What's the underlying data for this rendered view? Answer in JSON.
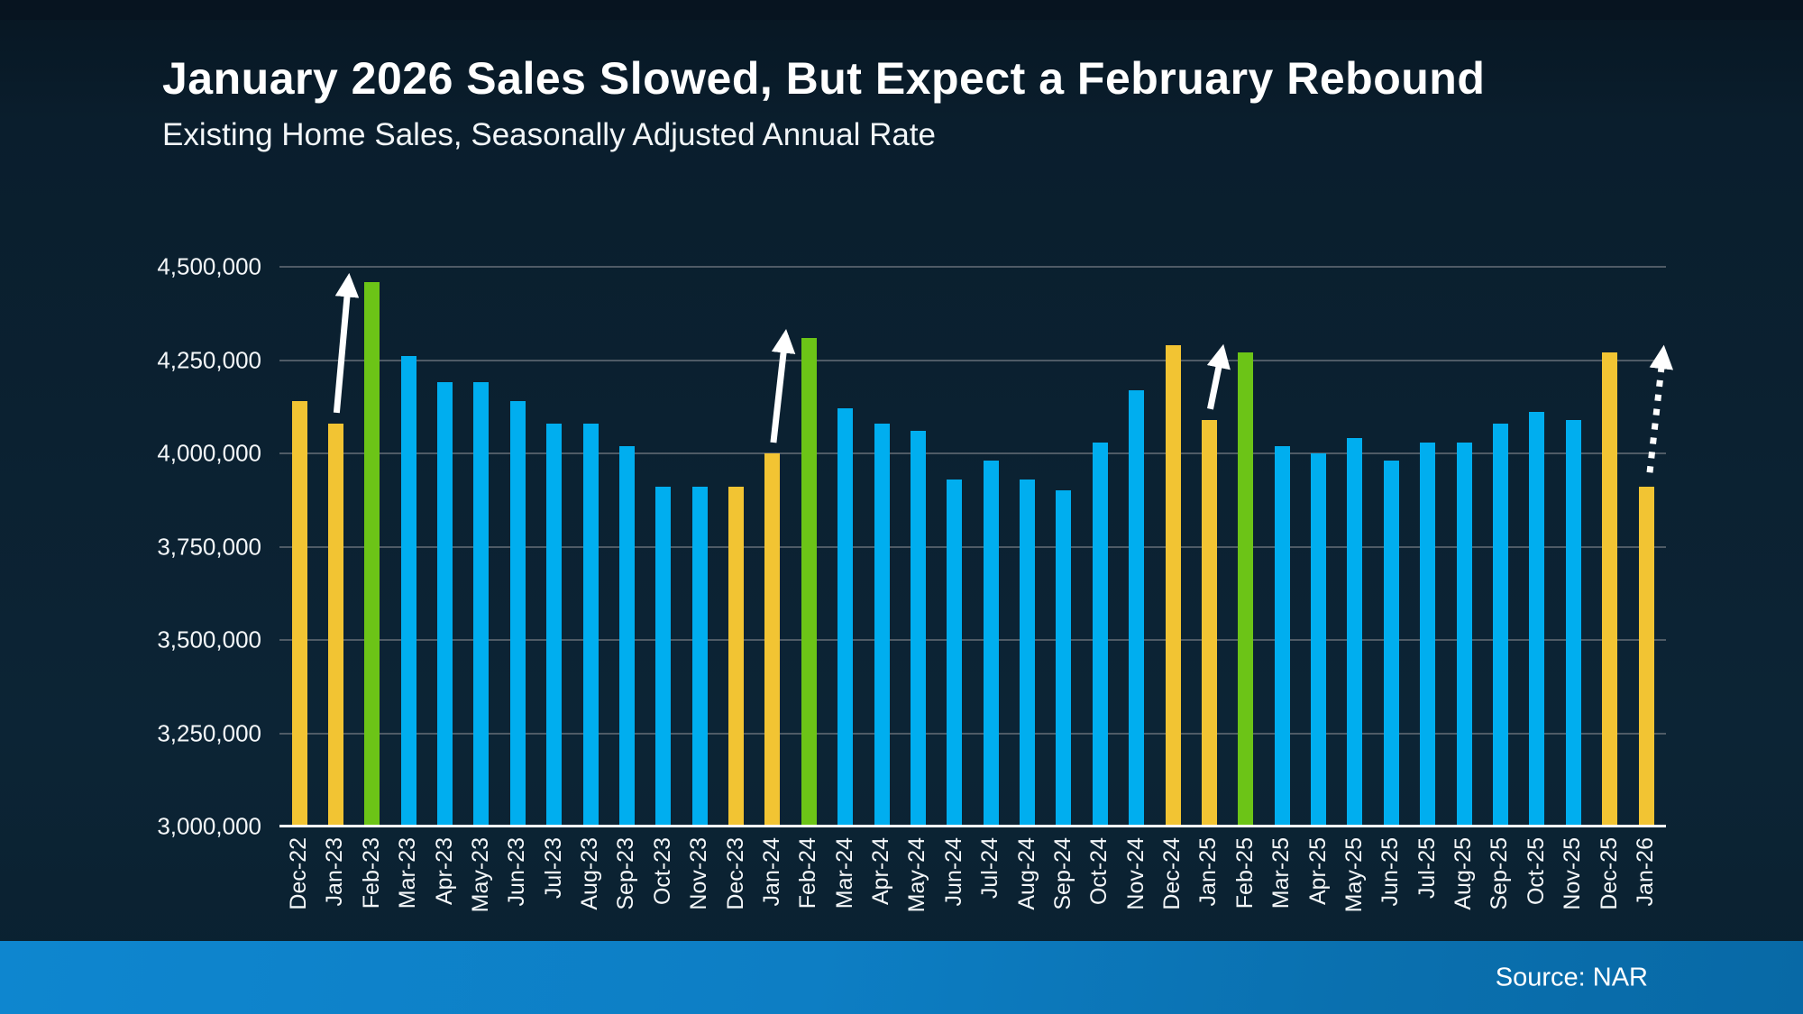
{
  "header": {
    "title": "January 2026 Sales Slowed, But Expect a February Rebound",
    "subtitle": "Existing Home Sales, Seasonally Adjusted Annual Rate"
  },
  "footer": {
    "source": "Source: NAR"
  },
  "colors": {
    "background": "#0b2233",
    "bar_blue": "#00aeef",
    "bar_gold": "#f2c433",
    "bar_green": "#6cc417",
    "gridline": "#4f5b66",
    "baseline": "#ffffff",
    "text": "#ffffff",
    "arrow": "#ffffff",
    "footer_left": "#0e86cf",
    "footer_right": "#0869a6"
  },
  "chart_data": {
    "type": "bar",
    "title": "January 2026 Sales Slowed, But Expect a February Rebound",
    "subtitle": "Existing Home Sales, Seasonally Adjusted Annual Rate",
    "xlabel": "",
    "ylabel": "",
    "ylim": [
      3000000,
      4500000
    ],
    "ytick_step": 250000,
    "grid": true,
    "legend": false,
    "source": "Source: NAR",
    "categories": [
      "Dec-22",
      "Jan-23",
      "Feb-23",
      "Mar-23",
      "Apr-23",
      "May-23",
      "Jun-23",
      "Jul-23",
      "Aug-23",
      "Sep-23",
      "Oct-23",
      "Nov-23",
      "Dec-23",
      "Jan-24",
      "Feb-24",
      "Mar-24",
      "Apr-24",
      "May-24",
      "Jun-24",
      "Jul-24",
      "Aug-24",
      "Sep-24",
      "Oct-24",
      "Nov-24",
      "Dec-24",
      "Jan-25",
      "Feb-25",
      "Mar-25",
      "Apr-25",
      "May-25",
      "Jun-25",
      "Jul-25",
      "Aug-25",
      "Sep-25",
      "Oct-25",
      "Nov-25",
      "Dec-25",
      "Jan-26"
    ],
    "values": [
      4140000,
      4080000,
      4460000,
      4260000,
      4190000,
      4190000,
      4140000,
      4080000,
      4080000,
      4020000,
      3910000,
      3910000,
      3910000,
      4000000,
      4310000,
      4120000,
      4080000,
      4060000,
      3930000,
      3980000,
      3930000,
      3900000,
      4030000,
      4170000,
      4290000,
      4090000,
      4270000,
      4020000,
      4000000,
      4040000,
      3980000,
      4030000,
      4030000,
      4080000,
      4110000,
      4090000,
      4270000,
      3910000
    ],
    "bar_colors": [
      "gold",
      "gold",
      "green",
      "blue",
      "blue",
      "blue",
      "blue",
      "blue",
      "blue",
      "blue",
      "blue",
      "blue",
      "gold",
      "gold",
      "green",
      "blue",
      "blue",
      "blue",
      "blue",
      "blue",
      "blue",
      "blue",
      "blue",
      "blue",
      "gold",
      "gold",
      "green",
      "blue",
      "blue",
      "blue",
      "blue",
      "blue",
      "blue",
      "blue",
      "blue",
      "blue",
      "gold",
      "gold"
    ],
    "annotations": [
      {
        "type": "arrow",
        "style": "solid",
        "from": "Jan-23",
        "to": "Feb-23"
      },
      {
        "type": "arrow",
        "style": "solid",
        "from": "Jan-24",
        "to": "Feb-24"
      },
      {
        "type": "arrow",
        "style": "solid",
        "from": "Jan-25",
        "to": "Feb-25"
      },
      {
        "type": "arrow",
        "style": "dashed",
        "from": "Jan-26",
        "to": null,
        "target_value": 4270000
      }
    ]
  }
}
